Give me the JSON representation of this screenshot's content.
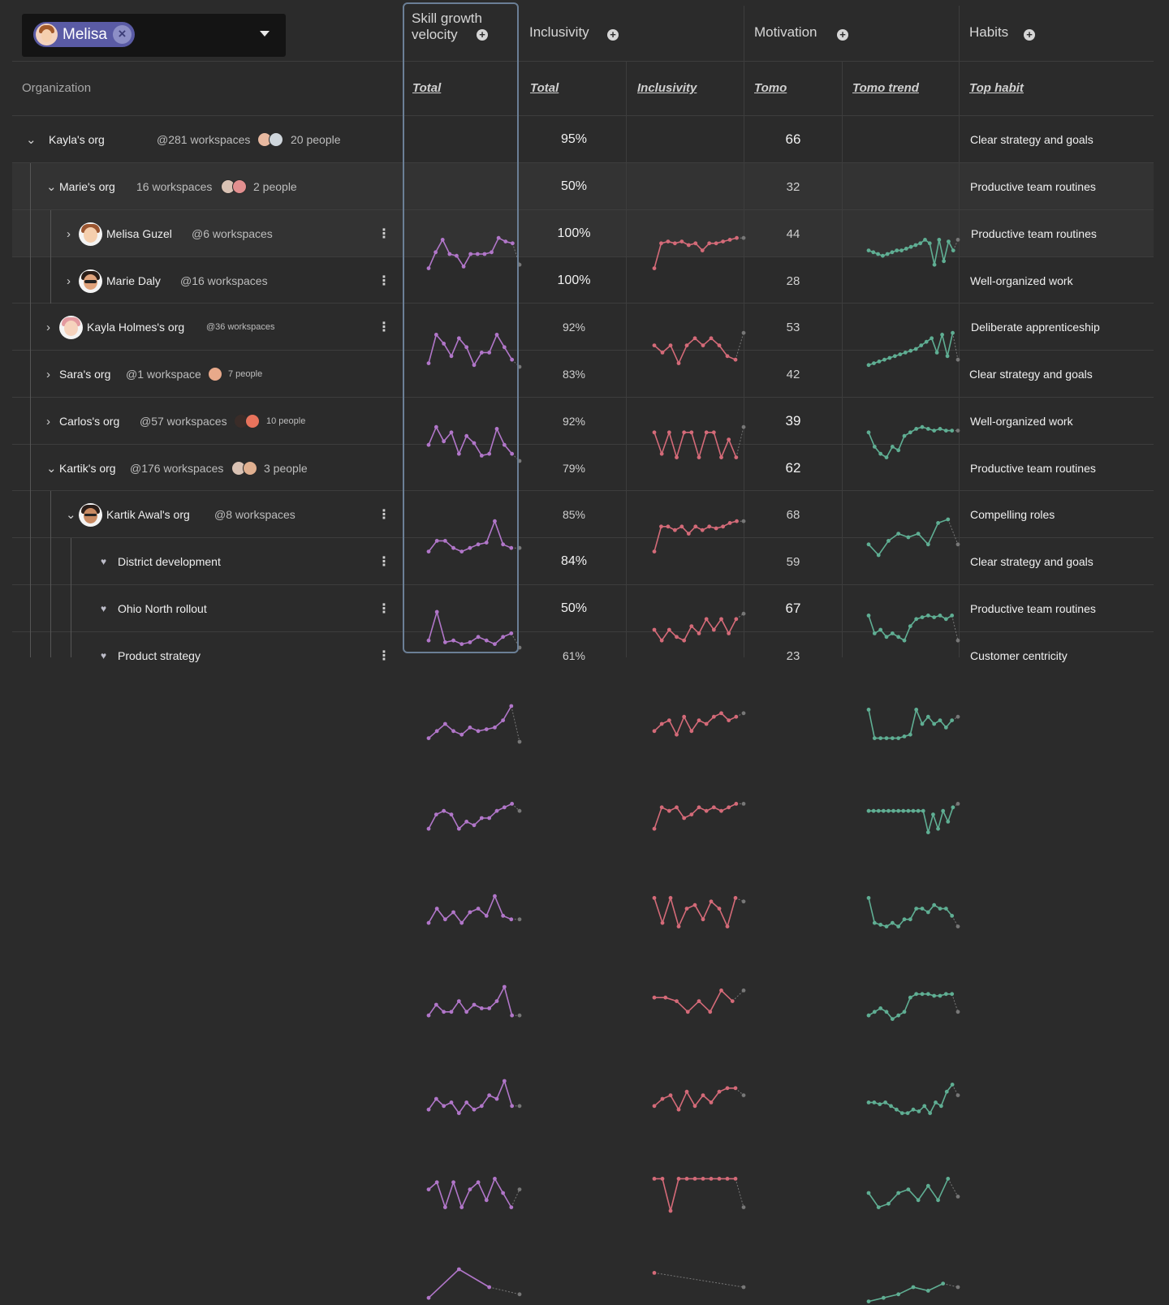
{
  "filter": {
    "chip_label": "Melisa",
    "close_glyph": "×"
  },
  "columns": {
    "organization": "Organization",
    "groups": [
      {
        "title_line1": "Skill growth",
        "title_line2": "velocity",
        "subs": [
          "Total"
        ]
      },
      {
        "title": "Inclusivity",
        "subs": [
          "Total",
          "Inclusivity"
        ]
      },
      {
        "title": "Motivation",
        "subs": [
          "Tomo",
          "Tomo trend"
        ]
      },
      {
        "title": "Habits",
        "subs": [
          "Top habit"
        ]
      }
    ]
  },
  "colors": {
    "skill": "#b176c9",
    "inclusivity": "#d46a78",
    "tomo": "#5fae93"
  },
  "rows": [
    {
      "name": "Kayla's org",
      "ws": "@281 workspaces",
      "people": "20 people",
      "total": "95%",
      "tomo": "66",
      "habit": "Clear strategy and goals",
      "skill": [
        0.1,
        0.55,
        0.9,
        0.5,
        0.45,
        0.15,
        0.5,
        0.5,
        0.5,
        0.55,
        0.95,
        0.85,
        0.8,
        0.2
      ],
      "incl": [
        0.1,
        0.8,
        0.85,
        0.8,
        0.85,
        0.75,
        0.8,
        0.6,
        0.8,
        0.8,
        0.85,
        0.9,
        0.95,
        0.95
      ],
      "trend": [
        0.6,
        0.55,
        0.5,
        0.45,
        0.5,
        0.55,
        0.6,
        0.6,
        0.65,
        0.7,
        0.75,
        0.8,
        0.9,
        0.8,
        0.2,
        0.9,
        0.3,
        0.85,
        0.6,
        0.9
      ]
    },
    {
      "name": "Marie's org",
      "ws": "16 workspaces",
      "people": "2 people",
      "total": "50%",
      "tomo": "32",
      "habit": "Productive team routines",
      "skill": [
        0.1,
        0.9,
        0.65,
        0.3,
        0.8,
        0.55,
        0.05,
        0.4,
        0.4,
        0.9,
        0.55,
        0.2,
        0.0
      ],
      "incl": [
        0.6,
        0.4,
        0.6,
        0.1,
        0.6,
        0.8,
        0.6,
        0.8,
        0.6,
        0.3,
        0.2,
        0.95
      ],
      "trend": [
        0.05,
        0.1,
        0.15,
        0.2,
        0.25,
        0.3,
        0.35,
        0.4,
        0.45,
        0.5,
        0.6,
        0.7,
        0.8,
        0.4,
        0.9,
        0.3,
        0.95,
        0.2
      ]
    },
    {
      "name": "Melisa Guzel",
      "ws": "@6 workspaces",
      "total": "100%",
      "tomo": "44",
      "habit": "Productive team routines",
      "skill": [
        0.45,
        0.95,
        0.55,
        0.8,
        0.2,
        0.7,
        0.5,
        0.15,
        0.2,
        0.9,
        0.45,
        0.2,
        0.0
      ],
      "incl": [
        0.8,
        0.2,
        0.8,
        0.1,
        0.8,
        0.8,
        0.1,
        0.8,
        0.8,
        0.1,
        0.6,
        0.1,
        0.95
      ],
      "trend": [
        0.8,
        0.4,
        0.2,
        0.1,
        0.4,
        0.3,
        0.7,
        0.8,
        0.9,
        0.95,
        0.9,
        0.85,
        0.9,
        0.85,
        0.85,
        0.85
      ]
    },
    {
      "name": "Marie Daly",
      "ws": "@16 workspaces",
      "total": "100%",
      "tomo": "28",
      "habit": "Well-organized work",
      "skill": [
        0.1,
        0.4,
        0.4,
        0.2,
        0.1,
        0.2,
        0.3,
        0.35,
        0.95,
        0.3,
        0.2,
        0.2
      ],
      "incl": [
        0.1,
        0.8,
        0.8,
        0.7,
        0.8,
        0.6,
        0.8,
        0.7,
        0.8,
        0.75,
        0.8,
        0.9,
        0.95,
        0.95
      ],
      "trend": [
        0.3,
        0.0,
        0.4,
        0.6,
        0.5,
        0.6,
        0.3,
        0.9,
        1.0,
        0.3
      ]
    },
    {
      "name": "Kayla Holmes's org",
      "ws": "@36 workspaces",
      "total": "92%",
      "tomo": "53",
      "habit": "Deliberate apprenticeship",
      "skill": [
        0.2,
        1.0,
        0.15,
        0.2,
        0.1,
        0.15,
        0.3,
        0.2,
        0.1,
        0.3,
        0.4,
        0.0
      ],
      "incl": [
        0.5,
        0.2,
        0.5,
        0.3,
        0.2,
        0.6,
        0.4,
        0.8,
        0.5,
        0.8,
        0.4,
        0.8,
        0.95
      ],
      "trend": [
        0.9,
        0.4,
        0.5,
        0.3,
        0.4,
        0.3,
        0.2,
        0.6,
        0.8,
        0.85,
        0.9,
        0.85,
        0.9,
        0.8,
        0.9,
        0.2
      ]
    },
    {
      "name": "Sara's org",
      "ws": "@1 workspace",
      "people": "7 people",
      "total": "83%",
      "tomo": "42",
      "habit": "Clear strategy and goals",
      "skill": [
        0.1,
        0.3,
        0.5,
        0.3,
        0.2,
        0.4,
        0.3,
        0.35,
        0.4,
        0.6,
        1.0,
        0.0
      ],
      "incl": [
        0.3,
        0.5,
        0.6,
        0.2,
        0.7,
        0.3,
        0.6,
        0.5,
        0.7,
        0.8,
        0.6,
        0.7,
        0.8
      ],
      "trend": [
        0.9,
        0.1,
        0.1,
        0.1,
        0.1,
        0.1,
        0.15,
        0.2,
        0.9,
        0.5,
        0.7,
        0.5,
        0.6,
        0.4,
        0.6,
        0.7
      ]
    },
    {
      "name": "Carlos's org",
      "ws": "@57 workspaces",
      "people": "10 people",
      "total": "92%",
      "tomo": "39",
      "habit": "Well-organized work",
      "skill": [
        0.2,
        0.6,
        0.7,
        0.6,
        0.2,
        0.4,
        0.3,
        0.5,
        0.5,
        0.7,
        0.8,
        0.9,
        0.7
      ],
      "incl": [
        0.2,
        0.8,
        0.7,
        0.8,
        0.5,
        0.6,
        0.8,
        0.7,
        0.8,
        0.7,
        0.8,
        0.9,
        0.9
      ],
      "trend": [
        0.7,
        0.7,
        0.7,
        0.7,
        0.7,
        0.7,
        0.7,
        0.7,
        0.7,
        0.7,
        0.7,
        0.7,
        0.1,
        0.6,
        0.2,
        0.7,
        0.4,
        0.8,
        0.9
      ]
    },
    {
      "name": "Kartik's org",
      "ws": "@176 workspaces",
      "people": "3 people",
      "total": "79%",
      "tomo": "62",
      "habit": "Productive team routines",
      "skill": [
        0.2,
        0.6,
        0.3,
        0.5,
        0.2,
        0.5,
        0.6,
        0.4,
        0.95,
        0.4,
        0.3,
        0.3
      ],
      "incl": [
        0.9,
        0.2,
        0.9,
        0.1,
        0.6,
        0.7,
        0.3,
        0.8,
        0.6,
        0.1,
        0.9,
        0.8
      ],
      "trend": [
        0.9,
        0.2,
        0.15,
        0.1,
        0.2,
        0.1,
        0.3,
        0.3,
        0.6,
        0.6,
        0.5,
        0.7,
        0.6,
        0.6,
        0.4,
        0.1
      ]
    },
    {
      "name": "Kartik Awal's org",
      "ws": "@8 workspaces",
      "total": "85%",
      "tomo": "68",
      "habit": "Compelling roles",
      "skill": [
        0.2,
        0.5,
        0.3,
        0.3,
        0.6,
        0.3,
        0.5,
        0.4,
        0.4,
        0.6,
        1.0,
        0.2,
        0.2
      ],
      "incl": [
        0.7,
        0.7,
        0.6,
        0.3,
        0.6,
        0.3,
        0.9,
        0.6,
        0.9
      ],
      "trend": [
        0.2,
        0.3,
        0.4,
        0.3,
        0.1,
        0.2,
        0.3,
        0.7,
        0.8,
        0.8,
        0.8,
        0.75,
        0.75,
        0.8,
        0.8,
        0.3
      ]
    },
    {
      "name": "District development",
      "total": "84%",
      "tomo": "59",
      "habit": "Clear strategy and goals",
      "skill": [
        0.2,
        0.5,
        0.3,
        0.4,
        0.1,
        0.4,
        0.2,
        0.3,
        0.6,
        0.5,
        1.0,
        0.3,
        0.3
      ],
      "incl": [
        0.3,
        0.5,
        0.6,
        0.2,
        0.7,
        0.3,
        0.6,
        0.4,
        0.7,
        0.8,
        0.8,
        0.6
      ],
      "trend": [
        0.4,
        0.4,
        0.35,
        0.4,
        0.3,
        0.2,
        0.1,
        0.1,
        0.2,
        0.15,
        0.3,
        0.1,
        0.4,
        0.3,
        0.7,
        0.9,
        0.6
      ]
    },
    {
      "name": "Ohio North rollout",
      "total": "50%",
      "tomo": "67",
      "habit": "Productive team routines",
      "skill": [
        0.6,
        0.8,
        0.1,
        0.8,
        0.1,
        0.6,
        0.8,
        0.3,
        0.9,
        0.5,
        0.1,
        0.6
      ],
      "incl": [
        0.9,
        0.9,
        0.0,
        0.9,
        0.9,
        0.9,
        0.9,
        0.9,
        0.9,
        0.9,
        0.9,
        0.1
      ],
      "trend": [
        0.5,
        0.1,
        0.2,
        0.5,
        0.6,
        0.3,
        0.7,
        0.3,
        0.9,
        0.4
      ]
    },
    {
      "name": "Product strategy",
      "total": "61%",
      "tomo": "23",
      "habit": "Customer centricity",
      "skill": [
        0.2,
        1.0,
        0.5,
        0.3
      ],
      "incl": [
        0.9,
        0.5
      ],
      "trend": [
        0.1,
        0.2,
        0.3,
        0.5,
        0.4,
        0.6,
        0.5
      ]
    }
  ]
}
